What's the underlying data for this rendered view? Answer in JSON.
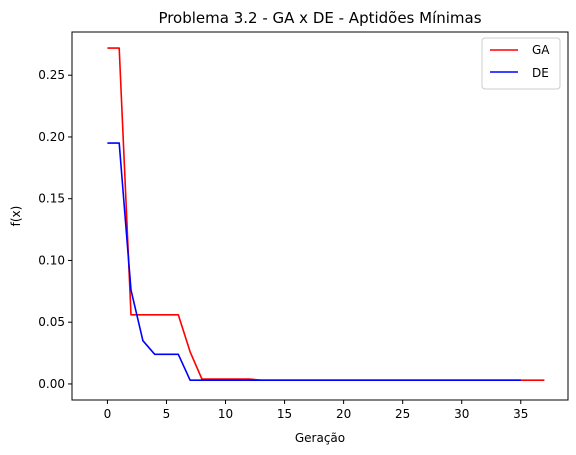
{
  "chart_data": {
    "type": "line",
    "title": "Problema 3.2 - GA x DE - Aptidões Mínimas",
    "xlabel": "Geração",
    "ylabel": "f(x)",
    "xlim": [
      -3,
      39
    ],
    "ylim": [
      -0.013,
      0.285
    ],
    "xticks": [
      0,
      5,
      10,
      15,
      20,
      25,
      30,
      35
    ],
    "xtick_labels": [
      "0",
      "5",
      "10",
      "15",
      "20",
      "25",
      "30",
      "35"
    ],
    "yticks": [
      0.0,
      0.05,
      0.1,
      0.15,
      0.2,
      0.25
    ],
    "ytick_labels": [
      "0.00",
      "0.05",
      "0.10",
      "0.15",
      "0.20",
      "0.25"
    ],
    "grid": false,
    "legend_position": "top-right",
    "series": [
      {
        "name": "GA",
        "color": "#ff0000",
        "x": [
          0,
          1,
          2,
          3,
          4,
          5,
          6,
          7,
          8,
          9,
          10,
          11,
          12,
          13,
          14,
          15,
          16,
          17,
          18,
          19,
          20,
          21,
          22,
          23,
          24,
          25,
          26,
          27,
          28,
          29,
          30,
          31,
          32,
          33,
          34,
          35,
          36,
          37
        ],
        "values": [
          0.272,
          0.272,
          0.056,
          0.056,
          0.056,
          0.056,
          0.056,
          0.026,
          0.004,
          0.004,
          0.004,
          0.004,
          0.004,
          0.003,
          0.003,
          0.003,
          0.003,
          0.003,
          0.003,
          0.003,
          0.003,
          0.003,
          0.003,
          0.003,
          0.003,
          0.003,
          0.003,
          0.003,
          0.003,
          0.003,
          0.003,
          0.003,
          0.003,
          0.003,
          0.003,
          0.003,
          0.003,
          0.003
        ]
      },
      {
        "name": "DE",
        "color": "#0000ff",
        "x": [
          0,
          1,
          2,
          3,
          4,
          5,
          6,
          7,
          8,
          9,
          10,
          11,
          12,
          13,
          14,
          15,
          16,
          17,
          18,
          19,
          20,
          21,
          22,
          23,
          24,
          25,
          26,
          27,
          28,
          29,
          30,
          31,
          32,
          33,
          34,
          35
        ],
        "values": [
          0.195,
          0.195,
          0.076,
          0.035,
          0.024,
          0.024,
          0.024,
          0.003,
          0.003,
          0.003,
          0.003,
          0.003,
          0.003,
          0.003,
          0.003,
          0.003,
          0.003,
          0.003,
          0.003,
          0.003,
          0.003,
          0.003,
          0.003,
          0.003,
          0.003,
          0.003,
          0.003,
          0.003,
          0.003,
          0.003,
          0.003,
          0.003,
          0.003,
          0.003,
          0.003,
          0.003
        ]
      }
    ]
  }
}
